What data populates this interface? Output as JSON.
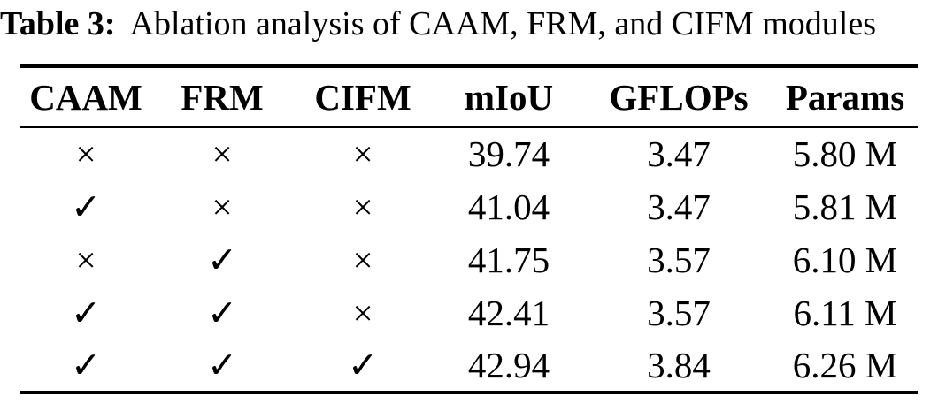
{
  "caption": {
    "label": "Table 3:",
    "text": "Ablation analysis of CAAM, FRM, and CIFM modules"
  },
  "table": {
    "headers": [
      "CAAM",
      "FRM",
      "CIFM",
      "mIoU",
      "GFLOPs",
      "Params"
    ],
    "rows": [
      [
        "×",
        "×",
        "×",
        "39.74",
        "3.47",
        "5.80 M"
      ],
      [
        "✓",
        "×",
        "×",
        "41.04",
        "3.47",
        "5.81 M"
      ],
      [
        "×",
        "✓",
        "×",
        "41.75",
        "3.57",
        "6.10 M"
      ],
      [
        "✓",
        "✓",
        "×",
        "42.41",
        "3.57",
        "6.11 M"
      ],
      [
        "✓",
        "✓",
        "✓",
        "42.94",
        "3.84",
        "6.26 M"
      ]
    ],
    "marks": {
      "enabled": "✓",
      "disabled": "×"
    }
  },
  "colors": {
    "text": "#000000",
    "background": "#ffffff",
    "rule": "#000000"
  }
}
